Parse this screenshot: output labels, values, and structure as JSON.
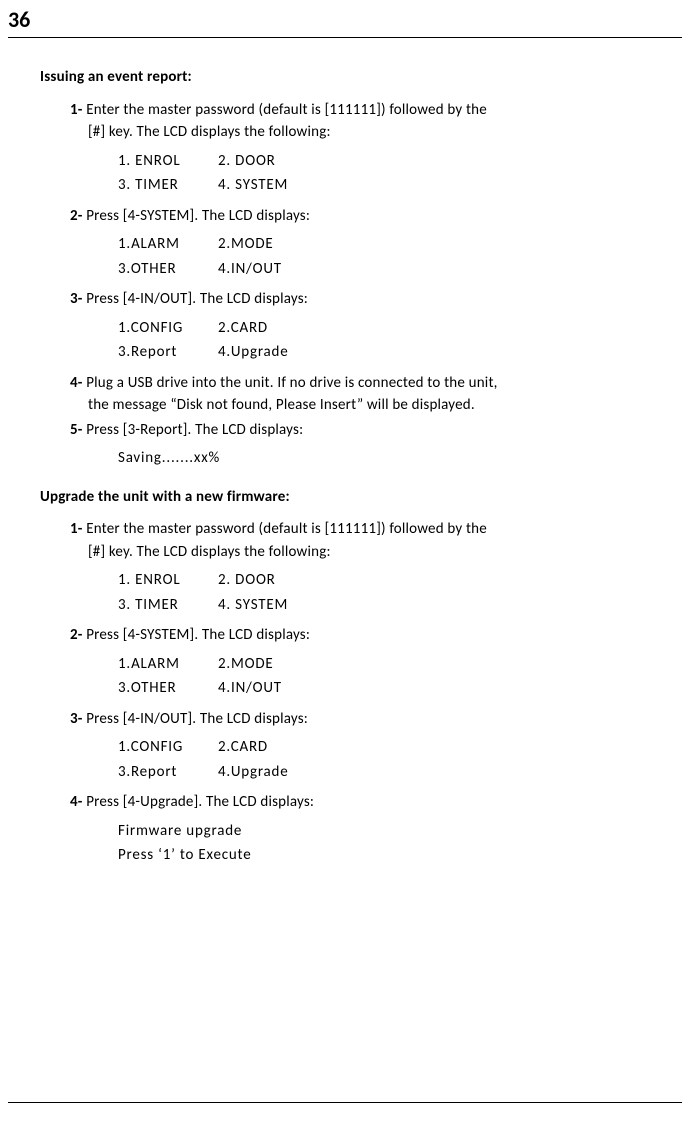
{
  "pageNumber": "36",
  "section1": {
    "heading": "Issuing an event report:",
    "steps": [
      {
        "num": "1-",
        "text": "Enter the master password (default is [111111]) followed by the",
        "cont": "[#] key. The LCD displays the following:",
        "lcd": [
          [
            "1. ENROL",
            "2. DOOR"
          ],
          [
            "3. TIMER",
            "4. SYSTEM"
          ]
        ]
      },
      {
        "num": "2-",
        "text": "Press [4-SYSTEM]. The LCD displays:",
        "lcd": [
          [
            "1.ALARM",
            "2.MODE"
          ],
          [
            "3.OTHER",
            "4.IN/OUT"
          ]
        ]
      },
      {
        "num": "3-",
        "text": "Press [4-IN/OUT]. The LCD displays:",
        "lcd": [
          [
            "1.CONFIG",
            "2.CARD"
          ],
          [
            "3.Report",
            "4.Upgrade"
          ]
        ]
      },
      {
        "num": "4-",
        "text": "Plug a USB drive into the unit. If no drive is connected to the unit,",
        "cont": "the message “Disk not found, Please Insert” will be displayed."
      },
      {
        "num": "5-",
        "text": "Press [3-Report]. The LCD displays:",
        "lcdLines": [
          "Saving.......xx%"
        ]
      }
    ]
  },
  "section2": {
    "heading": "Upgrade the unit with a new firmware:",
    "steps": [
      {
        "num": "1-",
        "text": "Enter the master password (default is [111111]) followed by the",
        "cont": "[#] key. The LCD displays the following:",
        "lcd": [
          [
            "1. ENROL",
            "2. DOOR"
          ],
          [
            "3. TIMER",
            "4. SYSTEM"
          ]
        ]
      },
      {
        "num": "2-",
        "text": "Press [4-SYSTEM]. The LCD displays:",
        "lcd": [
          [
            "1.ALARM",
            "2.MODE"
          ],
          [
            "3.OTHER",
            "4.IN/OUT"
          ]
        ]
      },
      {
        "num": "3-",
        "text": "Press [4-IN/OUT]. The LCD displays:",
        "lcd": [
          [
            "1.CONFIG",
            "2.CARD"
          ],
          [
            "3.Report",
            "4.Upgrade"
          ]
        ]
      },
      {
        "num": "4-",
        "text": "Press [4-Upgrade]. The LCD displays:",
        "lcdLines": [
          "Firmware upgrade",
          "Press ‘1’ to Execute"
        ]
      }
    ]
  }
}
